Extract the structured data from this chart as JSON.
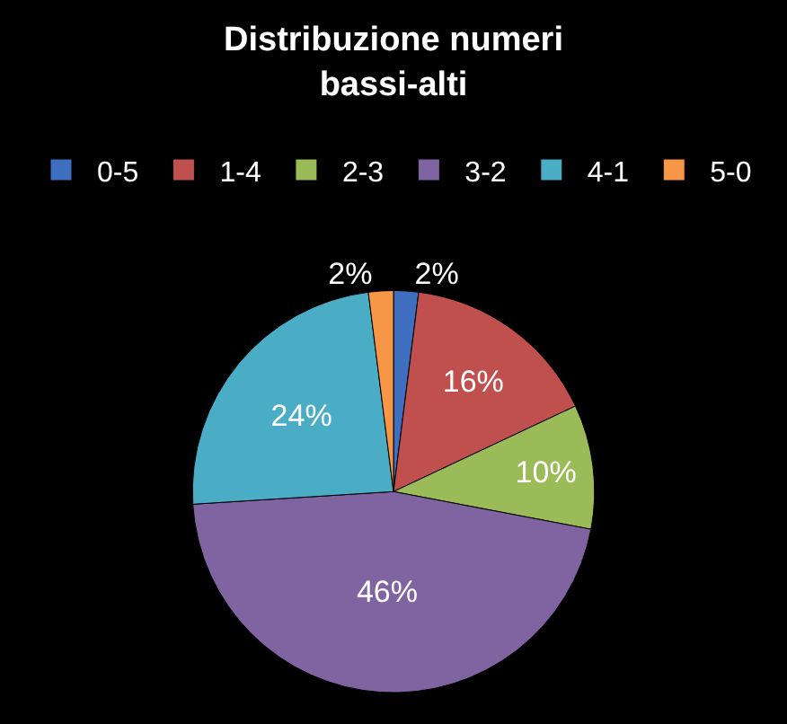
{
  "chart_data": {
    "type": "pie",
    "title": "Distribuzione numeri bassi-alti",
    "categories": [
      "0-5",
      "1-4",
      "2-3",
      "3-2",
      "4-1",
      "5-0"
    ],
    "values": [
      2,
      16,
      10,
      46,
      24,
      2
    ],
    "colors": [
      "#3f6fc0",
      "#c0504d",
      "#9bbb59",
      "#8064a2",
      "#4bacc6",
      "#f79646"
    ],
    "value_labels": [
      "2%",
      "16%",
      "10%",
      "46%",
      "24%",
      "2%"
    ],
    "legend": "top"
  }
}
